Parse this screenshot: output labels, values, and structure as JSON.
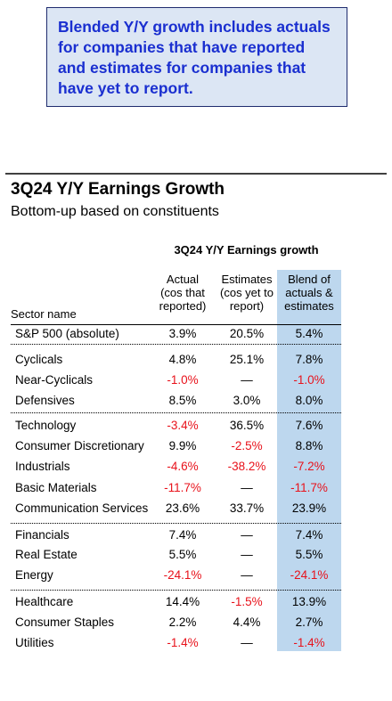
{
  "callout": {
    "text": "Blended Y/Y growth includes actuals for companies that have reported and estimates for companies that have yet to report."
  },
  "title": "3Q24 Y/Y Earnings Growth",
  "subtitle": "Bottom-up based on constituents",
  "table": {
    "group_header": "3Q24 Y/Y Earnings growth",
    "columns": {
      "sector": "Sector name",
      "actual": [
        "Actual",
        "(cos that",
        "reported)"
      ],
      "estimates": [
        "Estimates",
        "(cos yet to",
        "report)"
      ],
      "blend": [
        "Blend of",
        "actuals &",
        "estimates"
      ]
    },
    "colors": {
      "negative": "#e8121b",
      "blend_highlight": "#bdd7ee",
      "callout_bg": "#dce6f4",
      "callout_text": "#1a2fd0"
    }
  },
  "chart_data": {
    "type": "table",
    "title": "3Q24 Y/Y Earnings Growth",
    "subtitle": "Bottom-up based on constituents",
    "columns": [
      "Sector name",
      "Actual (cos that reported)",
      "Estimates (cos yet to report)",
      "Blend of actuals & estimates"
    ],
    "rows": [
      {
        "sector": "S&P 500 (absolute)",
        "actual": "3.9%",
        "estimates": "20.5%",
        "blend": "5.4%",
        "actual_neg": false,
        "estimates_neg": false,
        "blend_neg": false
      },
      {
        "sector": "Cyclicals",
        "actual": "4.8%",
        "estimates": "25.1%",
        "blend": "7.8%",
        "actual_neg": false,
        "estimates_neg": false,
        "blend_neg": false
      },
      {
        "sector": "Near-Cyclicals",
        "actual": "-1.0%",
        "estimates": "—",
        "blend": "-1.0%",
        "actual_neg": true,
        "estimates_neg": false,
        "blend_neg": true
      },
      {
        "sector": "Defensives",
        "actual": "8.5%",
        "estimates": "3.0%",
        "blend": "8.0%",
        "actual_neg": false,
        "estimates_neg": false,
        "blend_neg": false
      },
      {
        "sector": "Technology",
        "actual": "-3.4%",
        "estimates": "36.5%",
        "blend": "7.6%",
        "actual_neg": true,
        "estimates_neg": false,
        "blend_neg": false
      },
      {
        "sector": "Consumer Discretionary",
        "actual": "9.9%",
        "estimates": "-2.5%",
        "blend": "8.8%",
        "actual_neg": false,
        "estimates_neg": true,
        "blend_neg": false
      },
      {
        "sector": "Industrials",
        "actual": "-4.6%",
        "estimates": "-38.2%",
        "blend": "-7.2%",
        "actual_neg": true,
        "estimates_neg": true,
        "blend_neg": true
      },
      {
        "sector": "Basic Materials",
        "actual": "-11.7%",
        "estimates": "—",
        "blend": "-11.7%",
        "actual_neg": true,
        "estimates_neg": false,
        "blend_neg": true
      },
      {
        "sector": "Communication Services",
        "actual": "23.6%",
        "estimates": "33.7%",
        "blend": "23.9%",
        "actual_neg": false,
        "estimates_neg": false,
        "blend_neg": false
      },
      {
        "sector": "Financials",
        "actual": "7.4%",
        "estimates": "—",
        "blend": "7.4%",
        "actual_neg": false,
        "estimates_neg": false,
        "blend_neg": false
      },
      {
        "sector": "Real Estate",
        "actual": "5.5%",
        "estimates": "—",
        "blend": "5.5%",
        "actual_neg": false,
        "estimates_neg": false,
        "blend_neg": false
      },
      {
        "sector": "Energy",
        "actual": "-24.1%",
        "estimates": "—",
        "blend": "-24.1%",
        "actual_neg": true,
        "estimates_neg": false,
        "blend_neg": true
      },
      {
        "sector": "Healthcare",
        "actual": "14.4%",
        "estimates": "-1.5%",
        "blend": "13.9%",
        "actual_neg": false,
        "estimates_neg": true,
        "blend_neg": false
      },
      {
        "sector": "Consumer Staples",
        "actual": "2.2%",
        "estimates": "4.4%",
        "blend": "2.7%",
        "actual_neg": false,
        "estimates_neg": false,
        "blend_neg": false
      },
      {
        "sector": "Utilities",
        "actual": "-1.4%",
        "estimates": "—",
        "blend": "-1.4%",
        "actual_neg": true,
        "estimates_neg": false,
        "blend_neg": true
      }
    ]
  }
}
